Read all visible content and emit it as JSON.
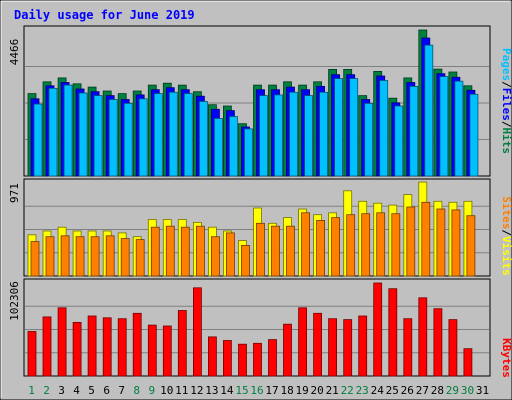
{
  "title": "Daily usage for June 2019",
  "colors": {
    "background": "#c0c0c0",
    "title": "#0000ff",
    "hits": "#008040",
    "files": "#0000ff",
    "pages": "#00c0ff",
    "visits": "#ffff00",
    "sites": "#ff8000",
    "kbytes": "#ff0000",
    "weekend_day": "#008040",
    "weekday": "#000000"
  },
  "legend": {
    "pages": "Pages",
    "files": "Files",
    "hits": "Hits",
    "sites": "Sites",
    "visits": "Visits",
    "kbytes": "KBytes",
    "separator": "/"
  },
  "chart_data": {
    "type": "bar",
    "title": "Daily usage for June 2019",
    "categories": [
      "1",
      "2",
      "3",
      "4",
      "5",
      "6",
      "7",
      "8",
      "9",
      "10",
      "11",
      "12",
      "13",
      "14",
      "15",
      "16",
      "17",
      "18",
      "19",
      "20",
      "21",
      "22",
      "23",
      "24",
      "25",
      "26",
      "27",
      "28",
      "29",
      "30",
      "31"
    ],
    "weekend_days": [
      "1",
      "2",
      "8",
      "9",
      "15",
      "16",
      "22",
      "23",
      "29",
      "30"
    ],
    "panels": [
      {
        "id": "hits-files-pages",
        "ymax_label": "4466",
        "ymax": 4466,
        "series": [
          {
            "name": "Hits",
            "color": "#008040",
            "values": [
              2520,
              2880,
              3000,
              2820,
              2720,
              2600,
              2520,
              2600,
              2780,
              2840,
              2780,
              2580,
              2180,
              2140,
              1600,
              2780,
              2780,
              2880,
              2780,
              2880,
              3260,
              3260,
              2460,
              3200,
              2380,
              3000,
              4466,
              3270,
              3180,
              2760,
              null
            ]
          },
          {
            "name": "Files",
            "color": "#0000ff",
            "values": [
              2360,
              2760,
              2860,
              2660,
              2580,
              2460,
              2340,
              2480,
              2640,
              2700,
              2640,
              2440,
              2040,
              2000,
              1500,
              2640,
              2640,
              2720,
              2640,
              2740,
              3100,
              3100,
              2340,
              3060,
              2240,
              2860,
              4220,
              3130,
              3020,
              2620,
              null
            ]
          },
          {
            "name": "Pages",
            "color": "#00c0ff",
            "values": [
              2200,
              2680,
              2780,
              2540,
              2460,
              2340,
              2220,
              2360,
              2520,
              2560,
              2520,
              2280,
              1760,
              1820,
              1440,
              2460,
              2480,
              2560,
              2460,
              2560,
              2980,
              2980,
              2220,
              2920,
              2140,
              2740,
              4000,
              3040,
              2900,
              2500,
              null
            ]
          }
        ]
      },
      {
        "id": "visits-sites",
        "ymax_label": "971",
        "ymax": 971,
        "series": [
          {
            "name": "Visits",
            "color": "#ffff00",
            "values": [
              430,
              470,
              510,
              470,
              470,
              470,
              450,
              410,
              590,
              590,
              590,
              560,
              510,
              470,
              370,
              710,
              550,
              610,
              700,
              640,
              660,
              890,
              780,
              760,
              740,
              850,
              980,
              780,
              770,
              780,
              null
            ]
          },
          {
            "name": "Sites",
            "color": "#ff8000",
            "values": [
              360,
              410,
              420,
              410,
              410,
              420,
              390,
              380,
              510,
              520,
              510,
              520,
              410,
              450,
              320,
              550,
              520,
              520,
              660,
              580,
              610,
              640,
              650,
              660,
              650,
              720,
              770,
              700,
              690,
              630,
              null
            ]
          }
        ]
      },
      {
        "id": "kbytes",
        "ymax_label": "102306",
        "ymax": 102306,
        "series": [
          {
            "name": "KBytes",
            "color": "#ff0000",
            "values": [
              49000,
              65000,
              75000,
              59000,
              66000,
              64000,
              63000,
              69000,
              56000,
              55000,
              72000,
              97000,
              43000,
              39000,
              35000,
              36000,
              40000,
              57000,
              75000,
              69000,
              63000,
              62000,
              66000,
              102306,
              96000,
              63000,
              86000,
              74000,
              62000,
              30000,
              null
            ]
          }
        ]
      }
    ]
  }
}
